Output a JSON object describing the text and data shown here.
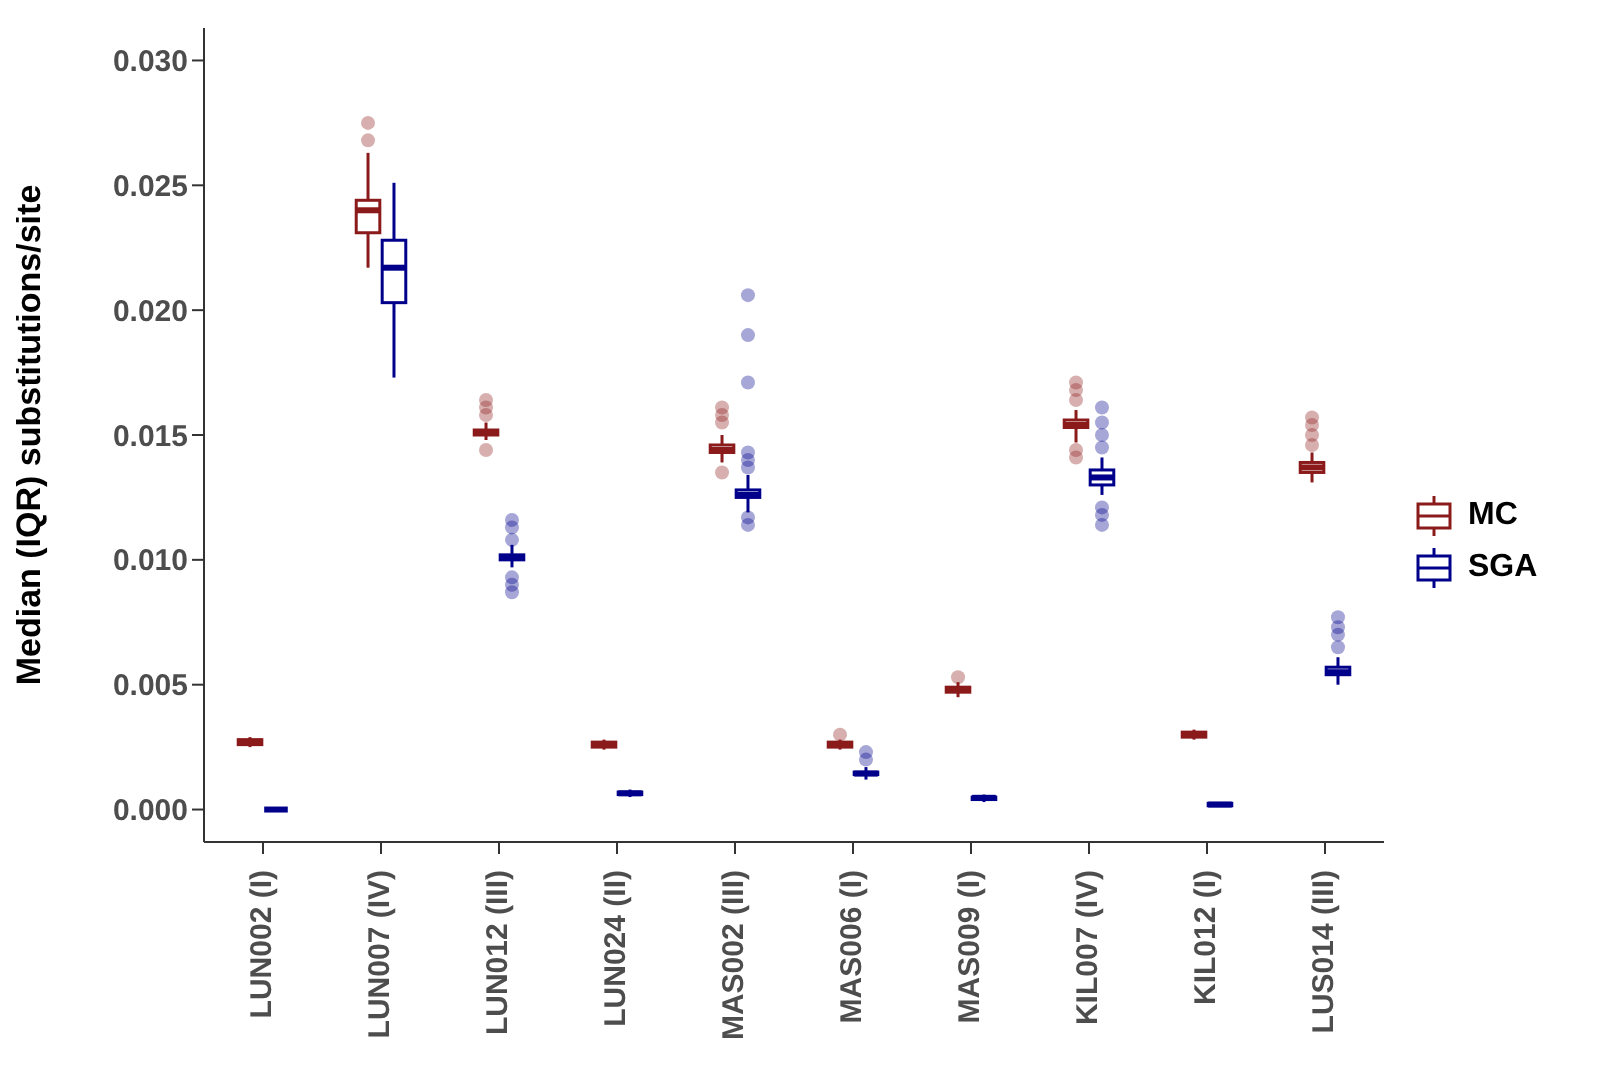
{
  "chart_data": {
    "type": "box",
    "ylabel": "Median (IQR) substitutions/site",
    "categories": [
      "LUN002 (I)",
      "LUN007 (IV)",
      "LUN012 (III)",
      "LUN024 (II)",
      "MAS002 (III)",
      "MAS006 (I)",
      "MAS009 (I)",
      "KIL007 (IV)",
      "KIL012 (I)",
      "LUS014 (III)"
    ],
    "ylim": [
      -0.0013,
      0.0313
    ],
    "yticks": [
      {
        "value": 0,
        "label": "0.000"
      },
      {
        "value": 0.005,
        "label": "0.005"
      },
      {
        "value": 0.01,
        "label": "0.010"
      },
      {
        "value": 0.015,
        "label": "0.015"
      },
      {
        "value": 0.02,
        "label": "0.020"
      },
      {
        "value": 0.025,
        "label": "0.025"
      },
      {
        "value": 0.03,
        "label": "0.030"
      }
    ],
    "legend": "right",
    "series": [
      {
        "name": "MC",
        "color": "#8b1a1a",
        "boxes": [
          {
            "low": 0.0025,
            "q1": 0.0026,
            "median": 0.0027,
            "q3": 0.0028,
            "high": 0.0029
          },
          {
            "low": 0.0217,
            "q1": 0.0231,
            "median": 0.024,
            "q3": 0.0244,
            "high": 0.0263,
            "outliers": [
              0.0268,
              0.0275
            ]
          },
          {
            "low": 0.0148,
            "q1": 0.015,
            "median": 0.0151,
            "q3": 0.0152,
            "high": 0.0155,
            "outliers": [
              0.0144,
              0.0158,
              0.0161,
              0.0164
            ]
          },
          {
            "low": 0.0024,
            "q1": 0.0025,
            "median": 0.0026,
            "q3": 0.0027,
            "high": 0.0028
          },
          {
            "low": 0.0139,
            "q1": 0.0143,
            "median": 0.0144,
            "q3": 0.0146,
            "high": 0.015,
            "outliers": [
              0.0135,
              0.0155,
              0.0158,
              0.0161
            ]
          },
          {
            "low": 0.0024,
            "q1": 0.0025,
            "median": 0.0026,
            "q3": 0.0027,
            "high": 0.0028,
            "outliers": [
              0.003
            ]
          },
          {
            "low": 0.0045,
            "q1": 0.0047,
            "median": 0.0048,
            "q3": 0.0049,
            "high": 0.0051,
            "outliers": [
              0.0053
            ]
          },
          {
            "low": 0.0147,
            "q1": 0.0153,
            "median": 0.0154,
            "q3": 0.0156,
            "high": 0.016,
            "outliers": [
              0.0141,
              0.0144,
              0.0164,
              0.0168,
              0.0171
            ]
          },
          {
            "low": 0.0028,
            "q1": 0.0029,
            "median": 0.003,
            "q3": 0.0031,
            "high": 0.0032
          },
          {
            "low": 0.0131,
            "q1": 0.0135,
            "median": 0.0137,
            "q3": 0.0139,
            "high": 0.0143,
            "outliers": [
              0.0146,
              0.015,
              0.0154,
              0.0157
            ]
          }
        ]
      },
      {
        "name": "SGA",
        "color": "#00008b",
        "boxes": [
          {
            "low": -0.0001,
            "q1": 0.0,
            "median": 0.0,
            "q3": 0.0,
            "high": 0.0001
          },
          {
            "low": 0.0173,
            "q1": 0.0203,
            "median": 0.0217,
            "q3": 0.0228,
            "high": 0.0251
          },
          {
            "low": 0.0097,
            "q1": 0.01,
            "median": 0.0101,
            "q3": 0.0102,
            "high": 0.0106,
            "outliers": [
              0.0087,
              0.009,
              0.0093,
              0.0108,
              0.0113,
              0.0116
            ]
          },
          {
            "low": 0.0005,
            "q1": 0.0006,
            "median": 0.00065,
            "q3": 0.0007,
            "high": 0.0008
          },
          {
            "low": 0.0119,
            "q1": 0.0125,
            "median": 0.0126,
            "q3": 0.0128,
            "high": 0.0134,
            "outliers": [
              0.0114,
              0.0117,
              0.0137,
              0.014,
              0.0143,
              0.0171,
              0.019,
              0.0206
            ]
          },
          {
            "low": 0.0012,
            "q1": 0.0014,
            "median": 0.00144,
            "q3": 0.0015,
            "high": 0.0017,
            "outliers": [
              0.002,
              0.0023
            ]
          },
          {
            "low": 0.0003,
            "q1": 0.0004,
            "median": 0.00047,
            "q3": 0.0005,
            "high": 0.0006
          },
          {
            "low": 0.0126,
            "q1": 0.013,
            "median": 0.0133,
            "q3": 0.0136,
            "high": 0.0141,
            "outliers": [
              0.0114,
              0.0118,
              0.0121,
              0.0145,
              0.015,
              0.0155,
              0.0161
            ]
          },
          {
            "low": 0.0001,
            "q1": 0.00015,
            "median": 0.0002,
            "q3": 0.00025,
            "high": 0.0003
          },
          {
            "low": 0.005,
            "q1": 0.0054,
            "median": 0.0055,
            "q3": 0.0057,
            "high": 0.0061,
            "outliers": [
              0.0065,
              0.007,
              0.0073,
              0.0077
            ]
          }
        ]
      }
    ]
  }
}
